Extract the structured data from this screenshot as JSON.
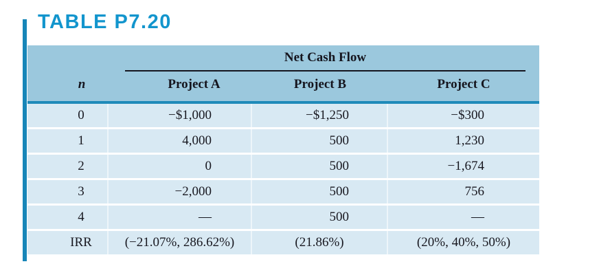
{
  "title": "TABLE P7.20",
  "table": {
    "group_header": "Net Cash Flow",
    "columns": [
      "n",
      "Project A",
      "Project B",
      "Project C"
    ],
    "rows": [
      [
        "0",
        "−$1,000",
        "−$1,250",
        "−$300"
      ],
      [
        "1",
        "4,000",
        "500",
        "1,230"
      ],
      [
        "2",
        "0",
        "500",
        "−1,674"
      ],
      [
        "3",
        "−2,000",
        "500",
        "756"
      ],
      [
        "4",
        "—",
        "500",
        "—"
      ],
      [
        "IRR",
        "(−21.07%, 286.62%)",
        "(21.86%)",
        "(20%, 40%, 50%)"
      ]
    ]
  },
  "colors": {
    "title_blue": "#1295cd",
    "accent_bar_blue": "#1786b8",
    "header_background": "#9bc8dd",
    "header_separator_blue": "#1f8ab9",
    "row_background": "#d8e9f3",
    "text_dark": "#181820"
  }
}
